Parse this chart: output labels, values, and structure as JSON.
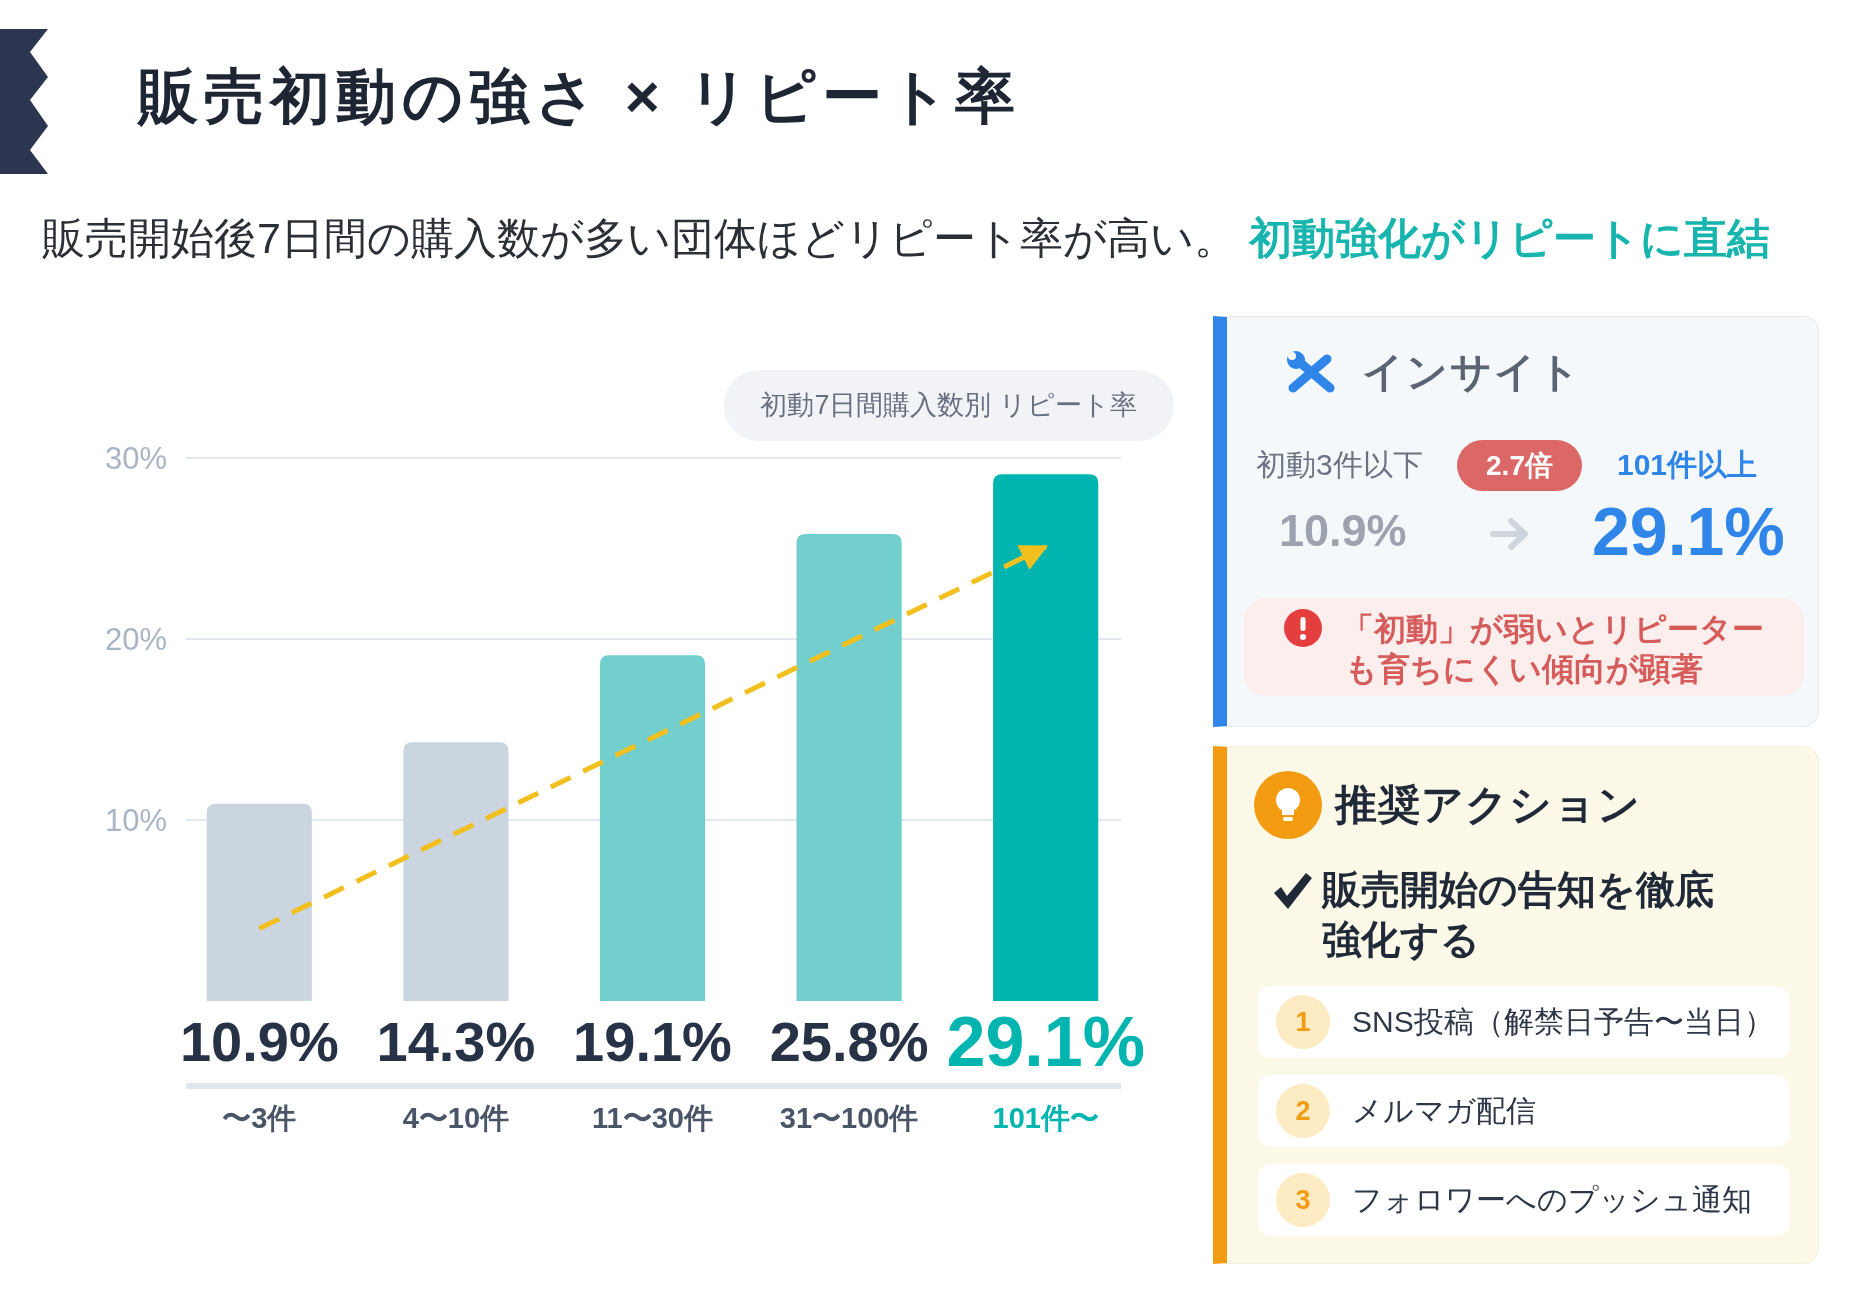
{
  "chart_data": [
    {
      "type": "bar",
      "title": "販売初動の強さ × リピート率",
      "subtitle": "販売開始後7日間の購入数が多い団体ほどリピート率が高い。",
      "annotations": [
        "初動7日間購入数別 リピート率",
        "初動強化がリピートに直結"
      ],
      "categories": [
        "〜3件",
        "4〜10件",
        "11〜30件",
        "31〜100件",
        "101件〜"
      ],
      "series": [
        {
          "values": [
            10.9,
            14.3,
            19.1,
            25.8,
            29.1
          ],
          "colors": [
            "#cbd5df",
            "#cbd5df",
            "#72cfcd",
            "#72cfcd",
            "#00b5b0"
          ],
          "value_labels": [
            "10.9%",
            "14.3%",
            "19.1%",
            "25.8%",
            "29.1%"
          ]
        },
        {
          "type": "line",
          "x": [
            "〜3件",
            "101件〜"
          ],
          "values": [
            4.0,
            25.1
          ],
          "color": "#f2c01e",
          "line_style": "dashed"
        }
      ],
      "ylim": [
        0,
        30
      ],
      "yticks": [
        {
          "value": 10,
          "label": "10%"
        },
        {
          "value": 20,
          "label": "20%"
        },
        {
          "value": 30,
          "label": "30%"
        }
      ],
      "grid": "y"
    },
    {
      "type": "other",
      "title": "インサイト",
      "annotations": [
        "初動3件以下",
        "2.7倍",
        "101件以上",
        "10.9%",
        "29.1%",
        "「初動」が弱いとリピーターも育ちにくい傾向が顕著"
      ]
    },
    {
      "type": "other",
      "title": "推奨アクション",
      "subtitle": "販売開始の告知を徹底強化する",
      "categories": [
        "1",
        "2",
        "3"
      ],
      "annotations": [
        "SNS投稿（解禁日予告〜当日）",
        "メルマガ配信",
        "フォロワーへのプッシュ通知"
      ]
    }
  ]
}
